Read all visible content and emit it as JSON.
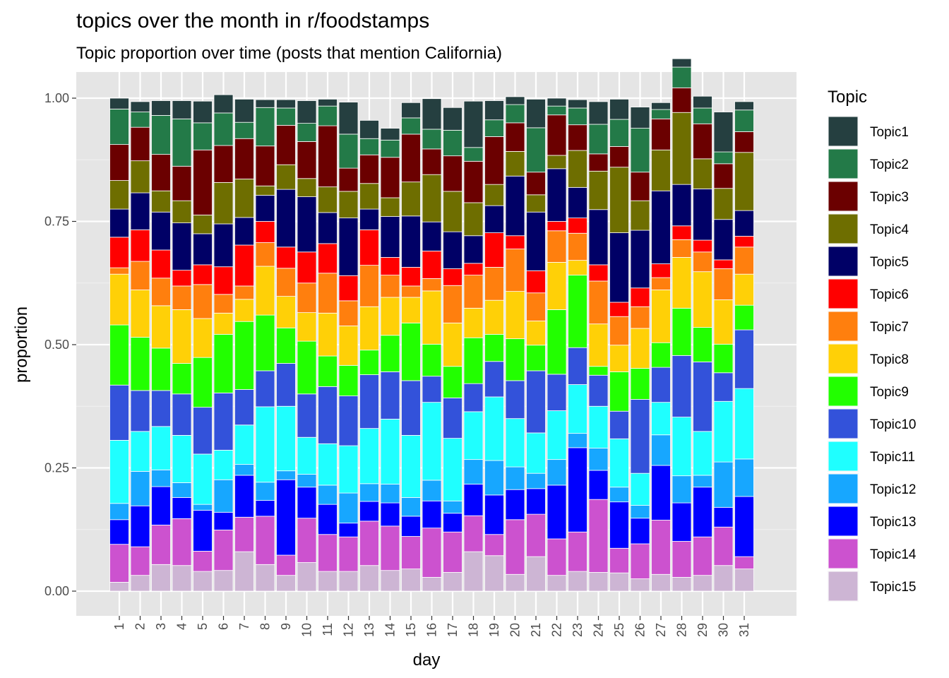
{
  "chart_data": {
    "type": "bar",
    "stacked": true,
    "title": "topics over the month in r/foodstamps",
    "subtitle": "Topic proportion over time (posts that mention California)",
    "xlabel": "day",
    "ylabel": "proportion",
    "ylim": [
      0,
      1
    ],
    "yticks": [
      "0.00",
      "0.25",
      "0.50",
      "0.75",
      "1.00"
    ],
    "grid": true,
    "legend_title": "Topic",
    "legend_position": "right",
    "categories": [
      "1",
      "2",
      "3",
      "4",
      "5",
      "6",
      "7",
      "8",
      "9",
      "10",
      "11",
      "12",
      "13",
      "14",
      "15",
      "16",
      "17",
      "18",
      "19",
      "20",
      "21",
      "22",
      "23",
      "24",
      "25",
      "26",
      "27",
      "28",
      "29",
      "30",
      "31"
    ],
    "series": [
      {
        "name": "Topic15",
        "color": "#CDB5D4",
        "values": [
          0.018,
          0.032,
          0.054,
          0.052,
          0.04,
          0.042,
          0.08,
          0.054,
          0.032,
          0.058,
          0.04,
          0.04,
          0.052,
          0.042,
          0.045,
          0.028,
          0.038,
          0.08,
          0.072,
          0.034,
          0.07,
          0.032,
          0.04,
          0.038,
          0.037,
          0.025,
          0.034,
          0.028,
          0.032,
          0.052,
          0.045
        ]
      },
      {
        "name": "Topic14",
        "color": "#CC52CF",
        "values": [
          0.077,
          0.058,
          0.08,
          0.095,
          0.041,
          0.082,
          0.07,
          0.098,
          0.041,
          0.09,
          0.075,
          0.07,
          0.09,
          0.09,
          0.066,
          0.1,
          0.082,
          0.073,
          0.043,
          0.111,
          0.086,
          0.074,
          0.08,
          0.148,
          0.05,
          0.071,
          0.11,
          0.073,
          0.078,
          0.078,
          0.025
        ]
      },
      {
        "name": "Topic13",
        "color": "#0000FF",
        "values": [
          0.05,
          0.083,
          0.078,
          0.043,
          0.083,
          0.036,
          0.085,
          0.032,
          0.153,
          0.063,
          0.061,
          0.028,
          0.04,
          0.047,
          0.041,
          0.055,
          0.038,
          0.064,
          0.08,
          0.061,
          0.052,
          0.109,
          0.171,
          0.059,
          0.094,
          0.052,
          0.111,
          0.078,
          0.101,
          0.04,
          0.122
        ]
      },
      {
        "name": "Topic12",
        "color": "#17A7FF",
        "values": [
          0.033,
          0.07,
          0.034,
          0.03,
          0.012,
          0.066,
          0.022,
          0.037,
          0.018,
          0.026,
          0.039,
          0.061,
          0.036,
          0.038,
          0.038,
          0.042,
          0.025,
          0.05,
          0.07,
          0.046,
          0.031,
          0.052,
          0.029,
          0.045,
          0.03,
          0.026,
          0.062,
          0.055,
          0.024,
          0.092,
          0.076
        ]
      },
      {
        "name": "Topic11",
        "color": "#1FFFFF",
        "values": [
          0.128,
          0.081,
          0.088,
          0.096,
          0.102,
          0.06,
          0.08,
          0.153,
          0.131,
          0.075,
          0.084,
          0.096,
          0.112,
          0.132,
          0.126,
          0.158,
          0.127,
          0.097,
          0.129,
          0.098,
          0.082,
          0.099,
          0.099,
          0.085,
          0.098,
          0.065,
          0.066,
          0.119,
          0.089,
          0.123,
          0.143
        ]
      },
      {
        "name": "Topic10",
        "color": "#3352DA",
        "values": [
          0.112,
          0.083,
          0.073,
          0.084,
          0.095,
          0.116,
          0.072,
          0.073,
          0.087,
          0.088,
          0.116,
          0.101,
          0.109,
          0.096,
          0.111,
          0.053,
          0.082,
          0.057,
          0.072,
          0.077,
          0.126,
          0.074,
          0.075,
          0.063,
          0.056,
          0.15,
          0.071,
          0.125,
          0.141,
          0.058,
          0.119
        ]
      },
      {
        "name": "Topic9",
        "color": "#22FF00",
        "values": [
          0.122,
          0.108,
          0.086,
          0.062,
          0.101,
          0.119,
          0.138,
          0.113,
          0.072,
          0.107,
          0.062,
          0.062,
          0.05,
          0.074,
          0.117,
          0.065,
          0.064,
          0.093,
          0.055,
          0.085,
          0.052,
          0.131,
          0.147,
          0.018,
          0.08,
          0.063,
          0.05,
          0.096,
          0.07,
          0.058,
          0.05
        ]
      },
      {
        "name": "Topic8",
        "color": "#FFD007",
        "values": [
          0.103,
          0.096,
          0.086,
          0.109,
          0.079,
          0.043,
          0.045,
          0.099,
          0.064,
          0.058,
          0.087,
          0.08,
          0.088,
          0.077,
          0.052,
          0.108,
          0.088,
          0.06,
          0.069,
          0.096,
          0.049,
          0.096,
          0.03,
          0.086,
          0.054,
          0.081,
          0.107,
          0.103,
          0.113,
          0.09,
          0.063
        ]
      },
      {
        "name": "Topic7",
        "color": "#FF7F0E",
        "values": [
          0.013,
          0.058,
          0.056,
          0.048,
          0.069,
          0.038,
          0.027,
          0.048,
          0.057,
          0.06,
          0.081,
          0.051,
          0.084,
          0.045,
          0.023,
          0.025,
          0.076,
          0.067,
          0.067,
          0.086,
          0.057,
          0.064,
          0.055,
          0.087,
          0.058,
          0.044,
          0.025,
          0.036,
          0.04,
          0.063,
          0.055
        ]
      },
      {
        "name": "Topic6",
        "color": "#FF0000",
        "values": [
          0.062,
          0.064,
          0.057,
          0.032,
          0.04,
          0.056,
          0.083,
          0.043,
          0.043,
          0.063,
          0.06,
          0.051,
          0.072,
          0.036,
          0.038,
          0.056,
          0.034,
          0.024,
          0.07,
          0.027,
          0.045,
          0.019,
          0.031,
          0.033,
          0.029,
          0.038,
          0.028,
          0.028,
          0.024,
          0.018,
          0.022
        ]
      },
      {
        "name": "Topic5",
        "color": "#000066",
        "values": [
          0.057,
          0.075,
          0.077,
          0.096,
          0.063,
          0.087,
          0.056,
          0.053,
          0.117,
          0.112,
          0.063,
          0.117,
          0.042,
          0.083,
          0.104,
          0.059,
          0.075,
          0.056,
          0.055,
          0.121,
          0.119,
          0.107,
          0.062,
          0.112,
          0.141,
          0.117,
          0.148,
          0.084,
          0.104,
          0.082,
          0.052
        ]
      },
      {
        "name": "Topic4",
        "color": "#6E6E00",
        "values": [
          0.058,
          0.065,
          0.043,
          0.045,
          0.038,
          0.084,
          0.078,
          0.019,
          0.05,
          0.037,
          0.052,
          0.054,
          0.052,
          0.038,
          0.069,
          0.096,
          0.082,
          0.067,
          0.043,
          0.05,
          0.035,
          0.027,
          0.075,
          0.078,
          0.133,
          0.06,
          0.083,
          0.146,
          0.061,
          0.063,
          0.118
        ]
      },
      {
        "name": "Topic3",
        "color": "#6B0000",
        "values": [
          0.073,
          0.068,
          0.074,
          0.07,
          0.132,
          0.075,
          0.082,
          0.081,
          0.08,
          0.075,
          0.124,
          0.047,
          0.058,
          0.082,
          0.097,
          0.052,
          0.072,
          0.084,
          0.097,
          0.058,
          0.046,
          0.082,
          0.052,
          0.035,
          0.042,
          0.058,
          0.063,
          0.05,
          0.071,
          0.05,
          0.042
        ]
      },
      {
        "name": "Topic2",
        "color": "#237A48",
        "values": [
          0.072,
          0.031,
          0.079,
          0.096,
          0.055,
          0.066,
          0.033,
          0.078,
          0.035,
          0.037,
          0.04,
          0.069,
          0.033,
          0.035,
          0.033,
          0.04,
          0.052,
          0.028,
          0.034,
          0.037,
          0.09,
          0.018,
          0.034,
          0.06,
          0.055,
          0.089,
          0.019,
          0.042,
          0.032,
          0.024,
          0.044
        ]
      },
      {
        "name": "Topic1",
        "color": "#253F40",
        "values": [
          0.022,
          0.021,
          0.03,
          0.037,
          0.044,
          0.037,
          0.047,
          0.016,
          0.017,
          0.046,
          0.014,
          0.065,
          0.037,
          0.024,
          0.031,
          0.062,
          0.046,
          0.094,
          0.039,
          0.016,
          0.058,
          0.016,
          0.017,
          0.046,
          0.041,
          0.043,
          0.014,
          0.017,
          0.024,
          0.081,
          0.017
        ]
      }
    ]
  }
}
